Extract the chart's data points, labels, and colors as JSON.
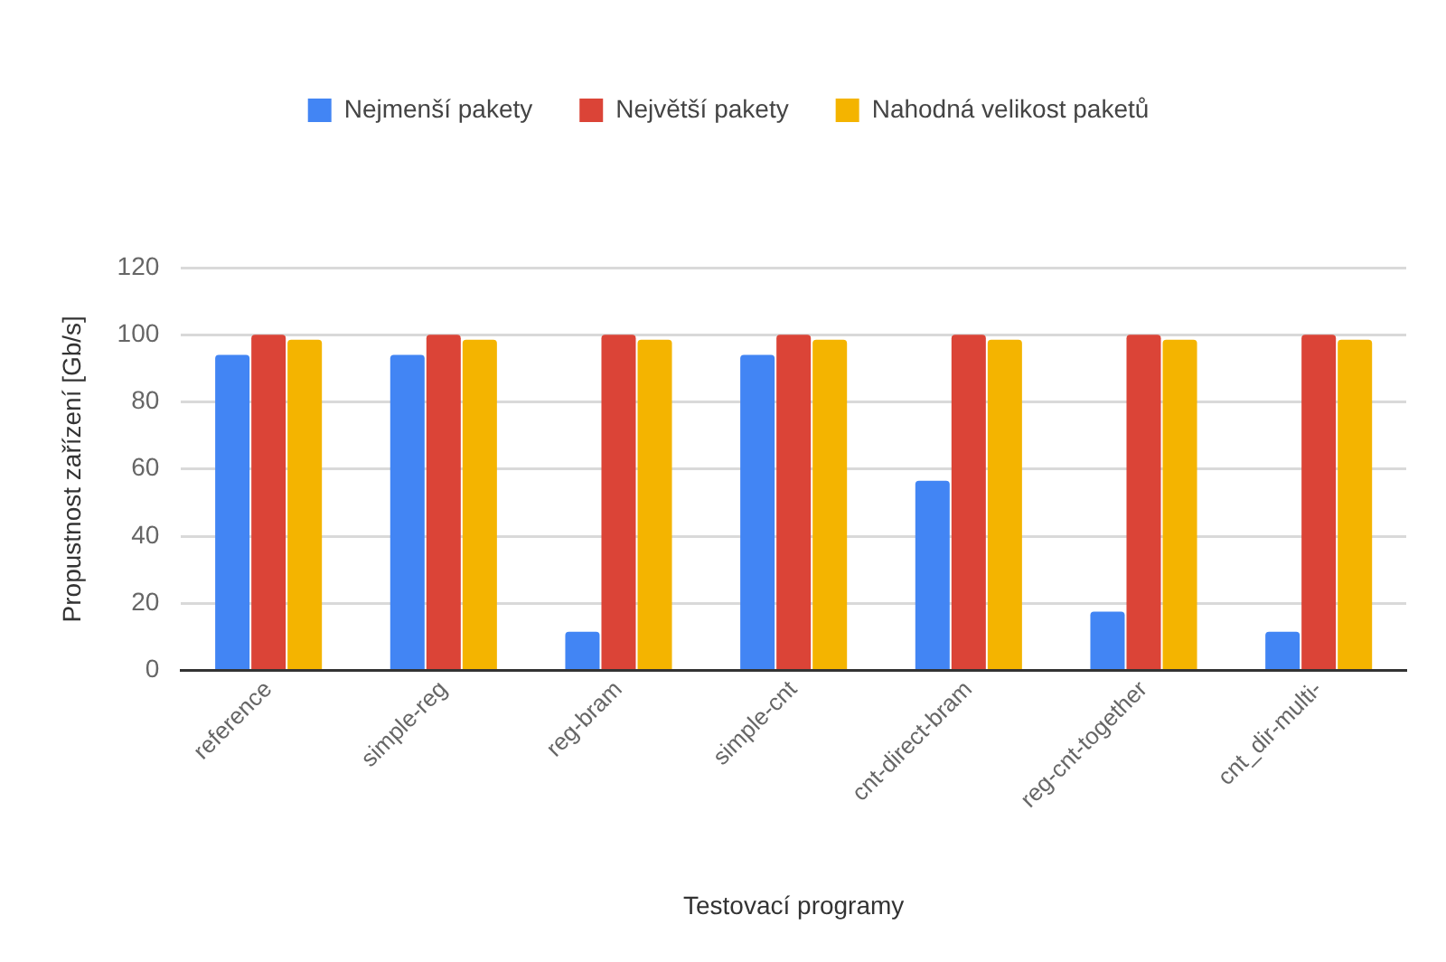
{
  "chart_data": {
    "type": "bar",
    "xlabel": "Testovací programy",
    "ylabel": "Propustnost zařízení [Gb/s]",
    "categories": [
      "reference",
      "simple-reg",
      "reg-bram",
      "simple-cnt",
      "cnt-direct-bram",
      "reg-cnt-together",
      "cnt_dir-multi-"
    ],
    "series": [
      {
        "name": "Nejmenší pakety",
        "color": "#4285f4",
        "values": [
          94,
          94,
          11.5,
          94,
          56.5,
          17.5,
          11.5
        ]
      },
      {
        "name": "Největší pakety",
        "color": "#db4437",
        "values": [
          100,
          100,
          100,
          100,
          100,
          100,
          100
        ]
      },
      {
        "name": "Nahodná velikost paketů",
        "color": "#f4b400",
        "values": [
          98.5,
          98.5,
          98.5,
          98.5,
          98.5,
          98.5,
          98.5
        ]
      }
    ],
    "ylim": [
      0,
      120
    ],
    "yticks": [
      0,
      20,
      40,
      60,
      80,
      100,
      120
    ],
    "grid": "y",
    "legend": "top"
  }
}
